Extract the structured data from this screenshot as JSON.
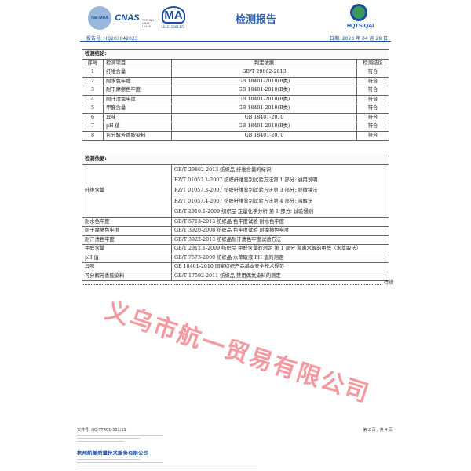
{
  "header": {
    "logos": [
      "ilac-MRA",
      "CNAS",
      "CMA",
      "HQTS-QAI"
    ],
    "cnas_text": "TESTING CNAS L2129",
    "cma_number": "161111361372",
    "title": "检测报告",
    "report_no": "报告号: HQ203042023",
    "date": "日期: 2020 年 04 月 28 日",
    "brand": "HQTS-QAI"
  },
  "conclusion": {
    "title": "检测结论:",
    "columns": [
      "序号",
      "检测项目",
      "判定依据",
      "检测结论"
    ],
    "rows": [
      [
        "1",
        "纤维含量",
        "GB/T 29862-2013",
        "符合"
      ],
      [
        "2",
        "耐水色牢度",
        "GB 18401-2010(B类)",
        "符合"
      ],
      [
        "3",
        "耐干摩擦色牢度",
        "GB 18401-2010(B类)",
        "符合"
      ],
      [
        "4",
        "耐汗渍色牢度",
        "GB 18401-2010(B类)",
        "符合"
      ],
      [
        "5",
        "甲醛含量",
        "GB 18401-2010(B类)",
        "符合"
      ],
      [
        "6",
        "异味",
        "GB 18401-2010",
        "符合"
      ],
      [
        "7",
        "pH 值",
        "GB 18401-2010(B类)",
        "符合"
      ],
      [
        "8",
        "可分解芳香胺染料",
        "GB 18401-2010",
        "符合"
      ]
    ]
  },
  "basis": {
    "title": "检测依据:",
    "fiber": {
      "item": "纤维含量",
      "standards": [
        "GB/T 29862-2013 纺织品 纤维含量的标识",
        "FZ/T 01057.1-2007 纺织纤维鉴别试验方法第 1 部分: 通用说明",
        "FZ/T 01057.3-2007 纺织纤维鉴别试验方法第 3 部分: 显微镜法",
        "FZ/T 01057.4-2007 纺织纤维鉴别试验方法第 4 部分: 溶解法",
        "GB/T 2910.1-2009 纺织品 定量化学分析 第 1 部分: 试验通则"
      ]
    },
    "rows": [
      [
        "耐水色牢度",
        "GB/T 5713-2013 纺织品 色牢度试验 耐水色牢度"
      ],
      [
        "耐干摩擦色牢度",
        "GB/T 3920-2008 纺织品 色牢度试验 耐摩擦色牢度"
      ],
      [
        "耐汗渍色牢度",
        "GB/T 3922-2013 纺织品耐汗渍色牢度试验方法"
      ],
      [
        "甲醛含量",
        "GB/T 2912.1-2009 纺织品 甲醛含量的测定 第 1 部分 游离水解的甲醛（水萃取法）"
      ],
      [
        "pH 值",
        "GB/T 7573-2009 纺织品 水萃取液 PH 值的测定"
      ],
      [
        "异味",
        "GB 18401-2010 国家纺织产品基本安全技术规范"
      ],
      [
        "可分解芳香胺染料",
        "GB/T 17592-2011 纺织品 禁用偶氮染料的测定"
      ]
    ],
    "continued": "待续"
  },
  "watermark": "义乌市航一贸易有限公司",
  "footer": {
    "doc_no": "文件号: HQ-TTR01-331/11",
    "page": "第 2 页 / 共 4 页",
    "company": "杭州航美质量技术服务有限公司"
  },
  "colors": {
    "brand_blue": "#1a4fa0",
    "watermark_red": "#eb4650",
    "title_blue": "#3060a8"
  }
}
